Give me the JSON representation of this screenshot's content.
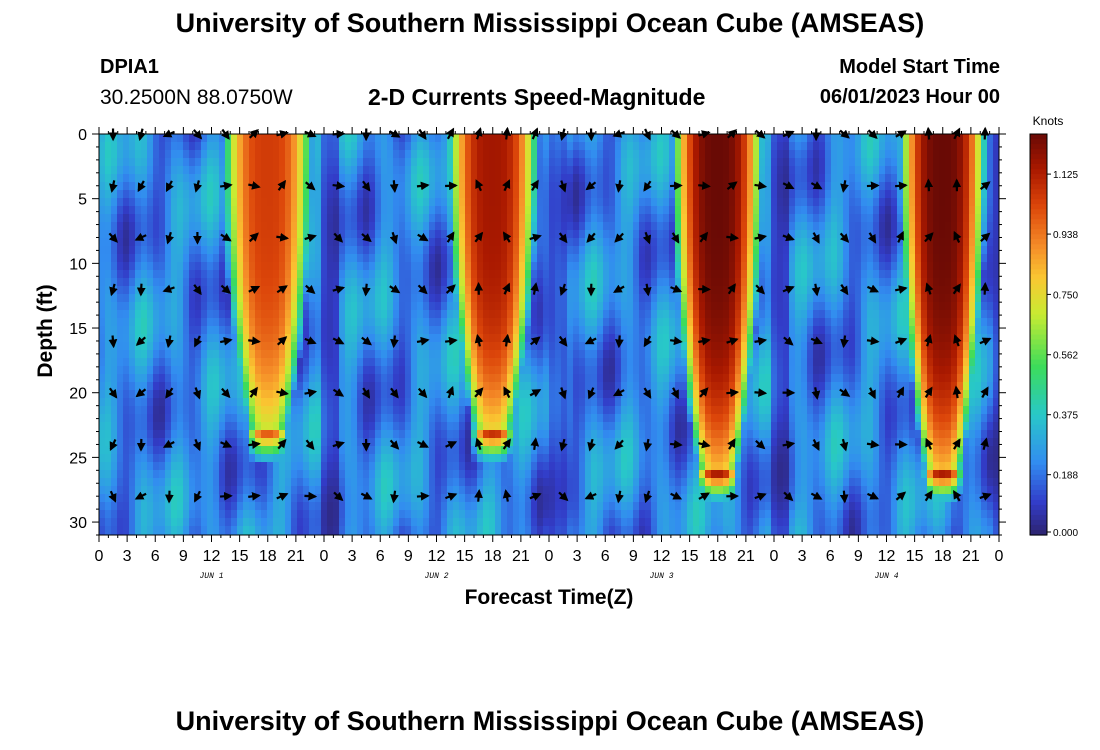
{
  "header": {
    "title": "University of Southern Mississippi Ocean Cube (AMSEAS)",
    "station_id": "DPIA1",
    "coordinates": "30.2500N  88.0750W",
    "subtitle": "2-D Currents Speed-Magnitude",
    "model_start_label": "Model Start Time",
    "model_start_value": "06/01/2023 Hour 00"
  },
  "footer": {
    "title": "University of Southern Mississippi Ocean Cube (AMSEAS)"
  },
  "chart_data": {
    "type": "heatmap",
    "title": "2-D Currents Speed-Magnitude",
    "xlabel": "Forecast Time(Z)",
    "ylabel": "Depth (ft)",
    "x_range_hours": [
      0,
      96
    ],
    "y_range_ft": [
      0,
      31
    ],
    "y_ticks": [
      0,
      5,
      10,
      15,
      20,
      25,
      30
    ],
    "x_tick_labels": [
      "0",
      "3",
      "6",
      "9",
      "12",
      "15",
      "18",
      "21",
      "0",
      "3",
      "6",
      "9",
      "12",
      "15",
      "18",
      "21",
      "0",
      "3",
      "6",
      "9",
      "12",
      "15",
      "18",
      "21",
      "0",
      "3",
      "6",
      "9",
      "12",
      "15",
      "18",
      "21",
      "0"
    ],
    "day_labels": [
      {
        "text": "JUN 1",
        "hour": 12
      },
      {
        "text": "JUN 2",
        "hour": 36
      },
      {
        "text": "JUN 3",
        "hour": 60
      },
      {
        "text": "JUN 4",
        "hour": 84
      }
    ],
    "colorbar": {
      "unit_label": "Knots",
      "min": 0,
      "max": 1.25,
      "ticks": [
        "1.125",
        "0.938",
        "0.750",
        "0.562",
        "0.375",
        "0.188",
        "0.000"
      ],
      "tick_values": [
        1.125,
        0.938,
        0.75,
        0.562,
        0.375,
        0.188,
        0.0
      ]
    },
    "speed_peaks": [
      {
        "center_hour": 18,
        "duration_hours": 10.5,
        "peak_knots": 1.05,
        "max_depth_ft": 23
      },
      {
        "center_hour": 42,
        "duration_hours": 10.5,
        "peak_knots": 1.15,
        "max_depth_ft": 23
      },
      {
        "center_hour": 66,
        "duration_hours": 10.5,
        "peak_knots": 1.25,
        "max_depth_ft": 26
      },
      {
        "center_hour": 90,
        "duration_hours": 10.0,
        "peak_knots": 1.25,
        "max_depth_ft": 26
      }
    ],
    "background_knots": 0.22,
    "arrow_depths_ft": [
      0,
      4,
      8,
      12,
      16,
      20,
      24,
      28
    ],
    "arrow_interval_hours": 3
  }
}
